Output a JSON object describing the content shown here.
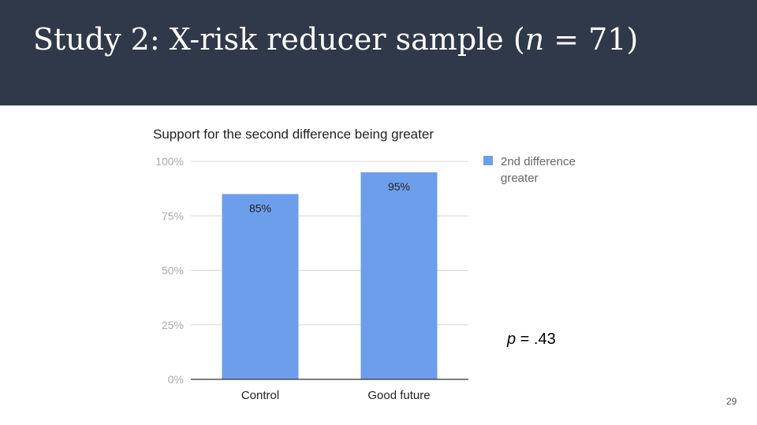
{
  "slide": {
    "title_prefix": "Study 2: X-risk reducer sample (",
    "title_n": "n",
    "title_suffix": " = 71)",
    "p_label": "p",
    "p_rest": " = .43",
    "page_number": "29"
  },
  "colors": {
    "header_bg": "#2f394a",
    "bar": "#6d9eeb",
    "grid": "#d9d9d9",
    "axis": "#333333",
    "tick_text": "#aaaaaa"
  },
  "chart_data": {
    "type": "bar",
    "title": "Support for the second difference being greater",
    "xlabel": "",
    "ylabel": "",
    "categories": [
      "Control",
      "Good future"
    ],
    "series": [
      {
        "name": "2nd difference greater",
        "values": [
          85,
          95
        ],
        "labels": [
          "85%",
          "95%"
        ]
      }
    ],
    "ylim": [
      0,
      100
    ],
    "yticks": [
      0,
      25,
      50,
      75,
      100
    ],
    "ytick_labels": [
      "0%",
      "25%",
      "50%",
      "75%",
      "100%"
    ],
    "legend_lines": [
      "2nd difference",
      "greater"
    ],
    "legend_position": "top-right",
    "grid": true
  }
}
